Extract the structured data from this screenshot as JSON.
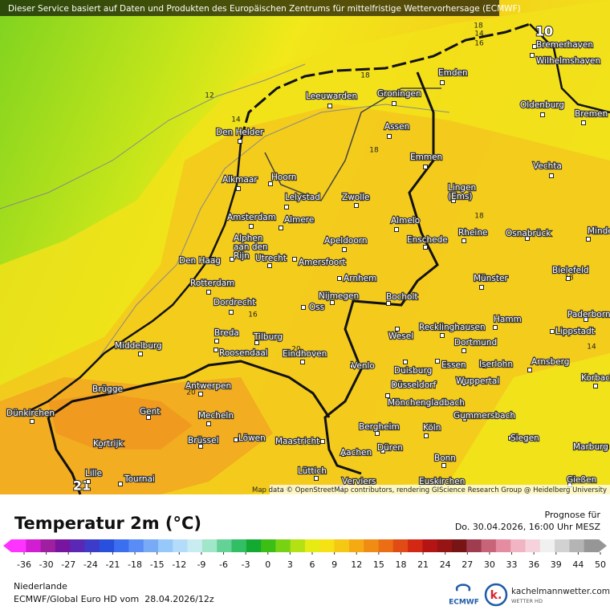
{
  "header": {
    "text": "Dieser Service basiert auf Daten und Produkten des Europäischen Zentrums für mittelfristige Wettervorhersage (ECMWF)"
  },
  "map": {
    "cities": [
      {
        "lines": [
          "Bremerhaven"
        ]
      },
      {
        "lines": [
          "Wilhelmshaven"
        ]
      },
      {
        "lines": [
          "Emden"
        ]
      },
      {
        "lines": [
          "Leeuwarden"
        ]
      },
      {
        "lines": [
          "Groningen"
        ]
      },
      {
        "lines": [
          "Oldenburg"
        ]
      },
      {
        "lines": [
          "Bremen"
        ]
      },
      {
        "lines": [
          "Den Helder"
        ]
      },
      {
        "lines": [
          "Assen"
        ]
      },
      {
        "lines": [
          "Emmen"
        ]
      },
      {
        "lines": [
          "Vechta"
        ]
      },
      {
        "lines": [
          "Alkmaar"
        ]
      },
      {
        "lines": [
          "Hoorn"
        ]
      },
      {
        "lines": [
          "Lingen",
          "(Ems)"
        ]
      },
      {
        "lines": [
          "Lelystad"
        ]
      },
      {
        "lines": [
          "Zwolle"
        ]
      },
      {
        "lines": [
          "Amsterdam"
        ]
      },
      {
        "lines": [
          "Almere"
        ]
      },
      {
        "lines": [
          "Almelo"
        ]
      },
      {
        "lines": [
          "Alphen",
          "aan den",
          "Rijn"
        ]
      },
      {
        "lines": [
          "Apeldoorn"
        ]
      },
      {
        "lines": [
          "Enschede"
        ]
      },
      {
        "lines": [
          "Rheine"
        ]
      },
      {
        "lines": [
          "Osnabrück"
        ]
      },
      {
        "lines": [
          "Minden"
        ]
      },
      {
        "lines": [
          "Den Haag"
        ]
      },
      {
        "lines": [
          "Utrecht"
        ]
      },
      {
        "lines": [
          "Amersfoort"
        ]
      },
      {
        "lines": [
          "Bielefeld"
        ]
      },
      {
        "lines": [
          "Arnhem"
        ]
      },
      {
        "lines": [
          "Münster"
        ]
      },
      {
        "lines": [
          "Rotterdam"
        ]
      },
      {
        "lines": [
          "Dordrecht"
        ]
      },
      {
        "lines": [
          "Nijmegen"
        ]
      },
      {
        "lines": [
          "Bocholt"
        ]
      },
      {
        "lines": [
          "Oss"
        ]
      },
      {
        "lines": [
          "Paderborn"
        ]
      },
      {
        "lines": [
          "Hamm"
        ]
      },
      {
        "lines": [
          "Breda"
        ]
      },
      {
        "lines": [
          "Tilburg"
        ]
      },
      {
        "lines": [
          "Recklinghausen"
        ]
      },
      {
        "lines": [
          "Lippstadt"
        ]
      },
      {
        "lines": [
          "Wesel"
        ]
      },
      {
        "lines": [
          "Middelburg"
        ]
      },
      {
        "lines": [
          "Roosendaal"
        ]
      },
      {
        "lines": [
          "Eindhoven"
        ]
      },
      {
        "lines": [
          "Dortmund"
        ]
      },
      {
        "lines": [
          "Arnsberg"
        ]
      },
      {
        "lines": [
          "Duisburg"
        ]
      },
      {
        "lines": [
          "Essen"
        ]
      },
      {
        "lines": [
          "Iserlohn"
        ]
      },
      {
        "lines": [
          "Venlo"
        ]
      },
      {
        "lines": [
          "Korbach"
        ]
      },
      {
        "lines": [
          "Wuppertal"
        ]
      },
      {
        "lines": [
          "Antwerpen"
        ]
      },
      {
        "lines": [
          "Düsseldorf"
        ]
      },
      {
        "lines": [
          "Brügge"
        ]
      },
      {
        "lines": [
          "Mönchengladbach"
        ]
      },
      {
        "lines": [
          "Dünkirchen"
        ]
      },
      {
        "lines": [
          "Gent"
        ]
      },
      {
        "lines": [
          "Mecheln"
        ]
      },
      {
        "lines": [
          "Gummersbach"
        ]
      },
      {
        "lines": [
          "Bergheim"
        ]
      },
      {
        "lines": [
          "Köln"
        ]
      },
      {
        "lines": [
          "Kortrijk"
        ]
      },
      {
        "lines": [
          "Brüssel"
        ]
      },
      {
        "lines": [
          "Löwen"
        ]
      },
      {
        "lines": [
          "Maastricht"
        ]
      },
      {
        "lines": [
          "Siegen"
        ]
      },
      {
        "lines": [
          "Marburg"
        ]
      },
      {
        "lines": [
          "Düren"
        ]
      },
      {
        "lines": [
          "Aachen"
        ]
      },
      {
        "lines": [
          "Bonn"
        ]
      },
      {
        "lines": [
          "Lille"
        ]
      },
      {
        "lines": [
          "Tournai"
        ]
      },
      {
        "lines": [
          "Lüttich"
        ]
      },
      {
        "lines": [
          "Gießen"
        ]
      },
      {
        "lines": [
          "Verviers"
        ]
      },
      {
        "lines": [
          "Euskirchen"
        ]
      }
    ],
    "isoline_labels": [
      "18",
      "14",
      "16",
      "10",
      "12",
      "14",
      "18",
      "18",
      "18",
      "18",
      "16",
      "20",
      "14",
      "20",
      "21"
    ],
    "attribution": "Map data © OpenStreetMap contributors, rendering GIScience Research Group @ Heidelberg University"
  },
  "legend": {
    "title": "Temperatur 2m (°C)",
    "forecast_label": "Prognose für",
    "forecast_time": "Do. 30.04.2026, 16:00 Uhr MESZ",
    "ticks": [
      -36,
      -30,
      -27,
      -24,
      -21,
      -18,
      -15,
      -12,
      -9,
      -6,
      -3,
      0,
      3,
      6,
      9,
      12,
      15,
      18,
      21,
      24,
      27,
      30,
      33,
      36,
      39,
      44,
      50
    ]
  },
  "footer": {
    "region": "Niederlande",
    "model": "ECMWF/Global Euro HD vom  28.04.2026/12z",
    "ecmwf": "ECMWF",
    "brand": "kachelmannwetter.com",
    "brand_sub": "WETTER HD"
  }
}
